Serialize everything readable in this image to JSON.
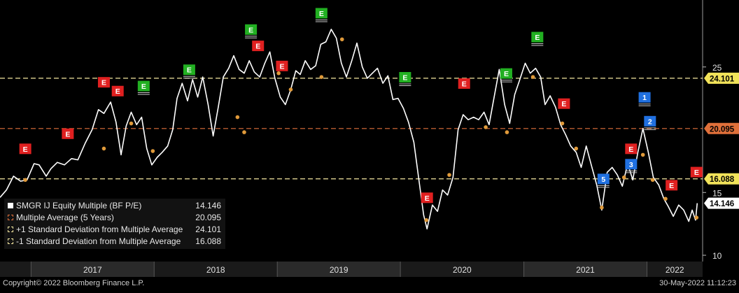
{
  "footer": {
    "copyright": "Copyright© 2022 Bloomberg Finance L.P.",
    "timestamp": "30-May-2022 11:12:23"
  },
  "legend": {
    "items": [
      {
        "label": "SMGR IJ Equity Multiple (BF P/E)",
        "value": "14.146",
        "color": "#ffffff",
        "style": "solid"
      },
      {
        "label": "Multiple Average (5 Years)",
        "value": "20.095",
        "color": "#e0703a",
        "style": "dashed"
      },
      {
        "label": "+1 Standard Deviation from Multiple Average",
        "value": "24.101",
        "color": "#f5e7a0",
        "style": "dashed"
      },
      {
        "label": "-1 Standard Deviation from Multiple Average",
        "value": "16.088",
        "color": "#f5e7a0",
        "style": "dashed"
      }
    ]
  },
  "colors": {
    "background": "#000000",
    "price_line": "#ffffff",
    "avg_line": "#e0703a",
    "sd_line": "#f5e7a0",
    "marker": "#e09a3a",
    "badge_red": "#e02020",
    "badge_green": "#22b022",
    "badge_blue": "#2070e0"
  },
  "chart_data": {
    "type": "line",
    "x_axis_labels": [
      "2017",
      "2018",
      "2019",
      "2020",
      "2021",
      "2022"
    ],
    "y_tick_labels": [
      "10",
      "15",
      "25"
    ],
    "y_ticks": [
      10,
      15,
      25
    ],
    "ylim": [
      9.5,
      30
    ],
    "xlim": [
      "2016-10-01",
      "2022-06-15"
    ],
    "reference_lines": [
      {
        "name": "Multiple Average (5 Years)",
        "value": 20.095,
        "label": "20.095",
        "color": "#e0703a"
      },
      {
        "name": "+1 Standard Deviation from Multiple Average",
        "value": 24.101,
        "label": "24.101",
        "color": "#f5e7a0"
      },
      {
        "name": "-1 Standard Deviation from Multiple Average",
        "value": 16.088,
        "label": "16.088",
        "color": "#f5e7a0"
      }
    ],
    "last_value_label": "14.146",
    "series": [
      {
        "name": "SMGR IJ Equity Multiple (BF P/E)",
        "points": [
          [
            "2016-10-01",
            14.6
          ],
          [
            "2016-10-20",
            15.2
          ],
          [
            "2016-11-10",
            16.3
          ],
          [
            "2016-12-01",
            15.9
          ],
          [
            "2016-12-20",
            16.0
          ],
          [
            "2017-01-10",
            17.3
          ],
          [
            "2017-01-25",
            17.2
          ],
          [
            "2017-02-15",
            16.3
          ],
          [
            "2017-03-01",
            16.9
          ],
          [
            "2017-03-20",
            17.4
          ],
          [
            "2017-04-10",
            17.2
          ],
          [
            "2017-05-01",
            17.7
          ],
          [
            "2017-05-20",
            17.6
          ],
          [
            "2017-06-10",
            18.9
          ],
          [
            "2017-07-01",
            20.0
          ],
          [
            "2017-07-20",
            21.6
          ],
          [
            "2017-08-05",
            21.3
          ],
          [
            "2017-08-25",
            22.2
          ],
          [
            "2017-09-10",
            20.6
          ],
          [
            "2017-09-25",
            18.0
          ],
          [
            "2017-10-10",
            20.3
          ],
          [
            "2017-10-25",
            21.4
          ],
          [
            "2017-11-10",
            20.4
          ],
          [
            "2017-11-25",
            21.0
          ],
          [
            "2017-12-10",
            18.5
          ],
          [
            "2017-12-25",
            17.2
          ],
          [
            "2018-01-10",
            17.8
          ],
          [
            "2018-01-25",
            18.2
          ],
          [
            "2018-02-10",
            18.7
          ],
          [
            "2018-02-25",
            20.0
          ],
          [
            "2018-03-10",
            22.5
          ],
          [
            "2018-03-25",
            23.7
          ],
          [
            "2018-04-10",
            22.3
          ],
          [
            "2018-04-25",
            24.0
          ],
          [
            "2018-05-10",
            22.6
          ],
          [
            "2018-05-25",
            24.2
          ],
          [
            "2018-06-10",
            22.0
          ],
          [
            "2018-06-25",
            19.5
          ],
          [
            "2018-07-10",
            21.8
          ],
          [
            "2018-07-25",
            24.2
          ],
          [
            "2018-08-10",
            24.9
          ],
          [
            "2018-08-25",
            25.9
          ],
          [
            "2018-09-10",
            24.8
          ],
          [
            "2018-09-25",
            24.5
          ],
          [
            "2018-10-10",
            25.5
          ],
          [
            "2018-10-25",
            24.6
          ],
          [
            "2018-11-10",
            24.2
          ],
          [
            "2018-11-25",
            25.3
          ],
          [
            "2018-12-10",
            26.2
          ],
          [
            "2018-12-25",
            24.1
          ],
          [
            "2019-01-10",
            22.6
          ],
          [
            "2019-01-25",
            22.0
          ],
          [
            "2019-02-10",
            23.2
          ],
          [
            "2019-02-25",
            24.7
          ],
          [
            "2019-03-10",
            24.4
          ],
          [
            "2019-03-25",
            25.5
          ],
          [
            "2019-04-10",
            24.8
          ],
          [
            "2019-04-25",
            25.1
          ],
          [
            "2019-05-10",
            26.8
          ],
          [
            "2019-05-25",
            27.0
          ],
          [
            "2019-06-10",
            28.0
          ],
          [
            "2019-06-25",
            27.3
          ],
          [
            "2019-07-10",
            25.3
          ],
          [
            "2019-07-25",
            24.2
          ],
          [
            "2019-08-10",
            25.5
          ],
          [
            "2019-08-25",
            26.9
          ],
          [
            "2019-09-10",
            25.0
          ],
          [
            "2019-09-25",
            24.1
          ],
          [
            "2019-10-10",
            24.5
          ],
          [
            "2019-10-25",
            24.9
          ],
          [
            "2019-11-10",
            23.7
          ],
          [
            "2019-11-25",
            24.3
          ],
          [
            "2019-12-10",
            22.4
          ],
          [
            "2019-12-25",
            22.5
          ],
          [
            "2020-01-10",
            21.7
          ],
          [
            "2020-01-25",
            20.6
          ],
          [
            "2020-02-10",
            19.0
          ],
          [
            "2020-02-25",
            16.0
          ],
          [
            "2020-03-10",
            13.2
          ],
          [
            "2020-03-20",
            12.1
          ],
          [
            "2020-04-05",
            14.0
          ],
          [
            "2020-04-20",
            13.5
          ],
          [
            "2020-05-05",
            15.2
          ],
          [
            "2020-05-20",
            14.8
          ],
          [
            "2020-06-05",
            16.2
          ],
          [
            "2020-06-20",
            20.0
          ],
          [
            "2020-07-05",
            21.2
          ],
          [
            "2020-07-20",
            20.8
          ],
          [
            "2020-08-05",
            21.0
          ],
          [
            "2020-08-20",
            20.8
          ],
          [
            "2020-09-05",
            21.4
          ],
          [
            "2020-09-20",
            20.4
          ],
          [
            "2020-10-05",
            22.6
          ],
          [
            "2020-10-20",
            24.8
          ],
          [
            "2020-11-05",
            22.0
          ],
          [
            "2020-11-20",
            20.5
          ],
          [
            "2020-12-05",
            22.8
          ],
          [
            "2020-12-20",
            24.0
          ],
          [
            "2021-01-05",
            25.3
          ],
          [
            "2021-01-20",
            24.5
          ],
          [
            "2021-02-05",
            24.9
          ],
          [
            "2021-02-20",
            24.2
          ],
          [
            "2021-03-05",
            22.0
          ],
          [
            "2021-03-20",
            22.7
          ],
          [
            "2021-04-05",
            21.8
          ],
          [
            "2021-04-20",
            20.4
          ],
          [
            "2021-05-05",
            19.6
          ],
          [
            "2021-05-20",
            18.7
          ],
          [
            "2021-06-05",
            18.2
          ],
          [
            "2021-06-20",
            17.0
          ],
          [
            "2021-07-05",
            18.7
          ],
          [
            "2021-07-20",
            17.2
          ],
          [
            "2021-08-05",
            15.6
          ],
          [
            "2021-08-20",
            13.6
          ],
          [
            "2021-09-05",
            16.6
          ],
          [
            "2021-09-20",
            17.0
          ],
          [
            "2021-10-05",
            16.4
          ],
          [
            "2021-10-20",
            15.5
          ],
          [
            "2021-11-05",
            17.3
          ],
          [
            "2021-11-20",
            16.0
          ],
          [
            "2021-12-05",
            18.2
          ],
          [
            "2021-12-20",
            20.1
          ],
          [
            "2022-01-05",
            18.2
          ],
          [
            "2022-01-20",
            16.2
          ],
          [
            "2022-02-05",
            15.6
          ],
          [
            "2022-02-20",
            14.5
          ],
          [
            "2022-03-05",
            13.9
          ],
          [
            "2022-03-20",
            13.1
          ],
          [
            "2022-04-05",
            14.0
          ],
          [
            "2022-04-20",
            13.6
          ],
          [
            "2022-05-05",
            12.7
          ],
          [
            "2022-05-15",
            13.6
          ],
          [
            "2022-05-25",
            12.8
          ],
          [
            "2022-05-30",
            14.146
          ]
        ]
      }
    ],
    "markers": [
      [
        "2016-12-15",
        16.0
      ],
      [
        "2017-08-05",
        18.5
      ],
      [
        "2017-10-25",
        20.5
      ],
      [
        "2017-12-28",
        18.3
      ],
      [
        "2018-09-05",
        21.0
      ],
      [
        "2018-09-25",
        19.8
      ],
      [
        "2019-01-05",
        24.5
      ],
      [
        "2019-02-10",
        23.2
      ],
      [
        "2019-05-12",
        24.2
      ],
      [
        "2019-07-12",
        27.2
      ],
      [
        "2020-03-18",
        12.8
      ],
      [
        "2020-05-25",
        16.4
      ],
      [
        "2020-09-10",
        20.2
      ],
      [
        "2020-11-12",
        19.8
      ],
      [
        "2021-01-28",
        24.2
      ],
      [
        "2021-04-25",
        20.5
      ],
      [
        "2021-06-05",
        18.5
      ],
      [
        "2021-08-20",
        13.8
      ],
      [
        "2021-10-25",
        16.2
      ],
      [
        "2021-12-20",
        18.0
      ],
      [
        "2022-01-18",
        16.0
      ],
      [
        "2022-02-25",
        14.5
      ],
      [
        "2022-05-28",
        13.0
      ]
    ],
    "event_badges": [
      {
        "text": "E",
        "date": "2016-12-15",
        "color": "red",
        "underline": false
      },
      {
        "text": "E",
        "date": "2017-04-20",
        "color": "red",
        "underline": false
      },
      {
        "text": "E",
        "date": "2017-08-05",
        "color": "red",
        "underline": false
      },
      {
        "text": "E",
        "date": "2017-09-15",
        "color": "red",
        "underline": false
      },
      {
        "text": "E",
        "date": "2017-12-01",
        "color": "green",
        "underline": true
      },
      {
        "text": "E",
        "date": "2018-04-15",
        "color": "green",
        "underline": true
      },
      {
        "text": "E",
        "date": "2018-10-15",
        "color": "green",
        "underline": true
      },
      {
        "text": "E",
        "date": "2018-11-05",
        "color": "red",
        "underline": false
      },
      {
        "text": "E",
        "date": "2019-01-15",
        "color": "red",
        "underline": false
      },
      {
        "text": "E",
        "date": "2019-05-12",
        "color": "green",
        "underline": true
      },
      {
        "text": "E",
        "date": "2020-01-15",
        "color": "green",
        "underline": true
      },
      {
        "text": "E",
        "date": "2020-03-20",
        "color": "red",
        "underline": false
      },
      {
        "text": "E",
        "date": "2020-07-08",
        "color": "red",
        "underline": false
      },
      {
        "text": "E",
        "date": "2020-11-10",
        "color": "green",
        "underline": true
      },
      {
        "text": "E",
        "date": "2021-02-10",
        "color": "green",
        "underline": true
      },
      {
        "text": "E",
        "date": "2021-04-30",
        "color": "red",
        "underline": false
      },
      {
        "text": "5",
        "date": "2021-08-25",
        "color": "blue",
        "underline": true
      },
      {
        "text": "E",
        "date": "2021-11-15",
        "color": "red",
        "underline": false
      },
      {
        "text": "3",
        "date": "2021-11-15",
        "color": "blue",
        "underline": true
      },
      {
        "text": "1",
        "date": "2021-12-25",
        "color": "blue",
        "underline": true
      },
      {
        "text": "2",
        "date": "2022-01-10",
        "color": "blue",
        "underline": true
      },
      {
        "text": "E",
        "date": "2022-03-15",
        "color": "red",
        "underline": false
      },
      {
        "text": "E",
        "date": "2022-05-28",
        "color": "red",
        "underline": false
      }
    ]
  }
}
